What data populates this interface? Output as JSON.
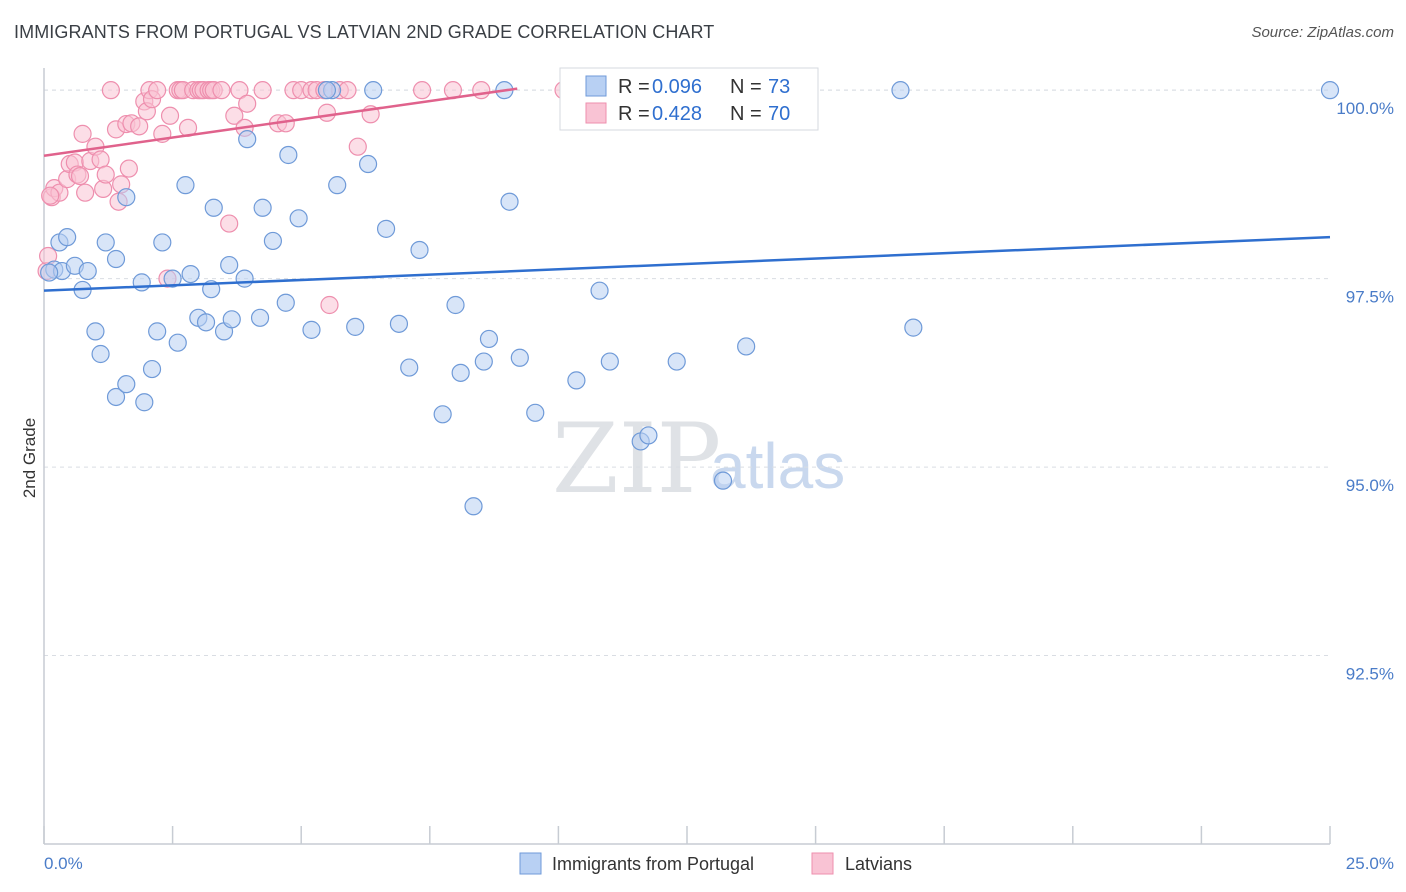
{
  "title": "IMMIGRANTS FROM PORTUGAL VS LATVIAN 2ND GRADE CORRELATION CHART",
  "source": "Source: ZipAtlas.com",
  "watermark": {
    "zip": "ZIP",
    "atlas": "atlas"
  },
  "colors": {
    "blue_fill": "#b8d0f3",
    "blue_stroke": "#6f9ad8",
    "blue_line": "#2f6fcf",
    "pink_fill": "#f9c3d4",
    "pink_stroke": "#ee8fae",
    "pink_line": "#e0628c",
    "grid": "#d9dde3",
    "axis_text": "#4a7cc8"
  },
  "legend": {
    "items": [
      {
        "r_label": "R = ",
        "r_value": "0.096",
        "n_label": "N = ",
        "n_value": "73"
      },
      {
        "r_label": "R = ",
        "r_value": "0.428",
        "n_label": "N = ",
        "n_value": "70"
      }
    ]
  },
  "bottom_legend": [
    "Immigrants from Portugal",
    "Latvians"
  ],
  "chart_data": {
    "type": "scatter",
    "ylabel": "2nd Grade",
    "xlim": [
      0.0,
      25.0
    ],
    "ylim": [
      90.0,
      100.4
    ],
    "x_tick_labels": [
      "0.0%",
      "25.0%"
    ],
    "y_ticks": [
      92.5,
      95.0,
      97.5,
      100.0
    ],
    "y_tick_labels": [
      "92.5%",
      "95.0%",
      "97.5%",
      "100.0%"
    ],
    "grid": "horizontal dashed",
    "legend_position": "top-center",
    "series": [
      {
        "name": "Immigrants from Portugal",
        "r": 0.096,
        "n": 73,
        "trend": {
          "x": [
            0.0,
            25.0
          ],
          "y": [
            97.34,
            98.05
          ]
        },
        "points": [
          [
            0.2,
            97.62
          ],
          [
            0.3,
            97.98
          ],
          [
            0.45,
            98.05
          ],
          [
            0.35,
            97.6
          ],
          [
            0.6,
            97.67
          ],
          [
            0.75,
            97.35
          ],
          [
            0.85,
            97.6
          ],
          [
            1.0,
            96.8
          ],
          [
            1.1,
            96.5
          ],
          [
            1.2,
            97.98
          ],
          [
            1.4,
            97.76
          ],
          [
            1.4,
            95.93
          ],
          [
            1.6,
            96.1
          ],
          [
            1.6,
            98.58
          ],
          [
            1.9,
            97.45
          ],
          [
            1.95,
            95.86
          ],
          [
            2.1,
            96.3
          ],
          [
            2.2,
            96.8
          ],
          [
            2.3,
            97.98
          ],
          [
            2.5,
            97.5
          ],
          [
            2.6,
            96.65
          ],
          [
            2.75,
            98.74
          ],
          [
            2.85,
            97.56
          ],
          [
            3.0,
            96.98
          ],
          [
            3.15,
            96.92
          ],
          [
            3.25,
            97.36
          ],
          [
            3.3,
            98.44
          ],
          [
            3.5,
            96.8
          ],
          [
            3.6,
            97.68
          ],
          [
            3.65,
            96.96
          ],
          [
            3.9,
            97.5
          ],
          [
            3.95,
            99.35
          ],
          [
            4.2,
            96.98
          ],
          [
            4.25,
            98.44
          ],
          [
            4.45,
            98.0
          ],
          [
            4.7,
            97.18
          ],
          [
            4.75,
            99.14
          ],
          [
            4.95,
            98.3
          ],
          [
            5.2,
            96.82
          ],
          [
            5.6,
            100.0
          ],
          [
            5.7,
            98.74
          ],
          [
            6.05,
            96.86
          ],
          [
            6.3,
            99.02
          ],
          [
            6.4,
            100.0
          ],
          [
            6.65,
            98.16
          ],
          [
            6.9,
            96.9
          ],
          [
            7.1,
            96.32
          ],
          [
            7.3,
            97.88
          ],
          [
            7.75,
            95.7
          ],
          [
            8.0,
            97.15
          ],
          [
            8.1,
            96.25
          ],
          [
            8.35,
            94.48
          ],
          [
            8.55,
            96.4
          ],
          [
            8.65,
            96.7
          ],
          [
            8.95,
            100.0
          ],
          [
            9.05,
            98.52
          ],
          [
            9.25,
            96.45
          ],
          [
            9.55,
            95.72
          ],
          [
            10.35,
            96.15
          ],
          [
            10.8,
            97.34
          ],
          [
            11.0,
            96.4
          ],
          [
            11.6,
            95.34
          ],
          [
            11.75,
            95.42
          ],
          [
            12.3,
            96.4
          ],
          [
            13.2,
            94.82
          ],
          [
            13.65,
            96.6
          ],
          [
            14.0,
            100.0
          ],
          [
            16.65,
            100.0
          ],
          [
            16.9,
            96.85
          ],
          [
            25.0,
            100.0
          ],
          [
            13.8,
            100.0
          ],
          [
            5.5,
            100.0
          ],
          [
            0.1,
            97.58
          ]
        ]
      },
      {
        "name": "Latvians",
        "r": 0.428,
        "n": 70,
        "trend": {
          "x": [
            0.0,
            9.2
          ],
          "y": [
            99.13,
            100.02
          ]
        },
        "points": [
          [
            0.15,
            98.58
          ],
          [
            0.2,
            98.7
          ],
          [
            0.3,
            98.64
          ],
          [
            0.45,
            98.82
          ],
          [
            0.5,
            99.02
          ],
          [
            0.6,
            99.04
          ],
          [
            0.65,
            98.88
          ],
          [
            0.7,
            98.86
          ],
          [
            0.75,
            99.42
          ],
          [
            0.8,
            98.64
          ],
          [
            0.9,
            99.06
          ],
          [
            1.0,
            99.25
          ],
          [
            1.1,
            99.08
          ],
          [
            1.15,
            98.69
          ],
          [
            1.2,
            98.88
          ],
          [
            1.3,
            100.0
          ],
          [
            1.4,
            99.48
          ],
          [
            1.45,
            98.52
          ],
          [
            1.5,
            98.75
          ],
          [
            1.6,
            99.55
          ],
          [
            1.65,
            98.96
          ],
          [
            1.7,
            99.56
          ],
          [
            1.85,
            99.52
          ],
          [
            1.95,
            99.85
          ],
          [
            2.0,
            99.72
          ],
          [
            2.05,
            100.0
          ],
          [
            2.1,
            99.88
          ],
          [
            2.2,
            100.0
          ],
          [
            2.3,
            99.42
          ],
          [
            2.4,
            97.5
          ],
          [
            2.45,
            99.66
          ],
          [
            2.6,
            100.0
          ],
          [
            2.65,
            100.0
          ],
          [
            2.7,
            100.0
          ],
          [
            2.8,
            99.5
          ],
          [
            2.9,
            100.0
          ],
          [
            3.0,
            100.0
          ],
          [
            3.05,
            100.0
          ],
          [
            3.1,
            100.0
          ],
          [
            3.2,
            100.0
          ],
          [
            3.25,
            100.0
          ],
          [
            3.3,
            100.0
          ],
          [
            3.45,
            100.0
          ],
          [
            3.6,
            98.23
          ],
          [
            3.7,
            99.66
          ],
          [
            3.8,
            100.0
          ],
          [
            3.9,
            99.5
          ],
          [
            3.95,
            99.82
          ],
          [
            4.25,
            100.0
          ],
          [
            4.55,
            99.56
          ],
          [
            4.7,
            99.56
          ],
          [
            4.85,
            100.0
          ],
          [
            5.0,
            100.0
          ],
          [
            5.2,
            100.0
          ],
          [
            5.3,
            100.0
          ],
          [
            5.45,
            100.0
          ],
          [
            5.5,
            99.7
          ],
          [
            5.55,
            97.15
          ],
          [
            5.75,
            100.0
          ],
          [
            5.9,
            100.0
          ],
          [
            6.1,
            99.25
          ],
          [
            6.35,
            99.68
          ],
          [
            7.35,
            100.0
          ],
          [
            7.95,
            100.0
          ],
          [
            8.5,
            100.0
          ],
          [
            10.1,
            100.0
          ],
          [
            13.45,
            100.0
          ],
          [
            0.05,
            97.6
          ],
          [
            0.08,
            97.8
          ],
          [
            0.12,
            98.6
          ]
        ]
      }
    ]
  }
}
